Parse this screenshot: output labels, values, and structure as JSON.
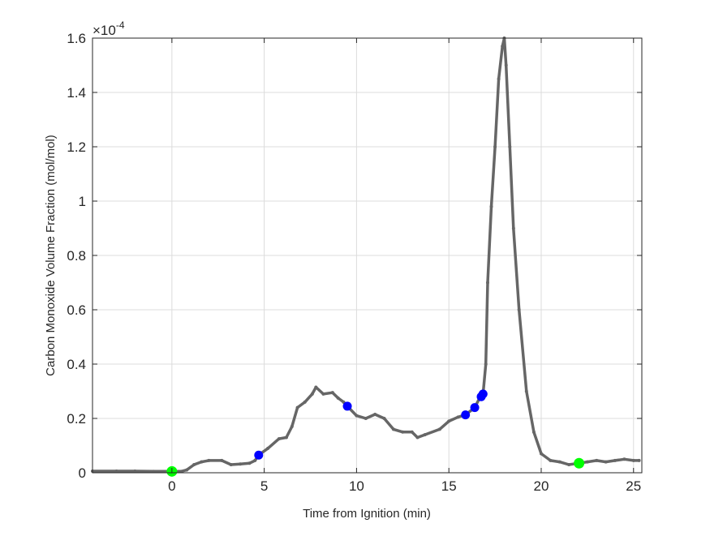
{
  "chart_data": {
    "type": "line",
    "title": "",
    "xlabel": "Time from Ignition (min)",
    "ylabel": "Carbon Monoxide Volume Fraction (mol/mol)",
    "y_exponent_label": "×10",
    "y_exponent_power": "-4",
    "xlim": [
      -4.3,
      25.45
    ],
    "ylim": [
      0,
      1.6
    ],
    "grid": true,
    "x_ticks": [
      0,
      5,
      10,
      15,
      20,
      25
    ],
    "x_tick_labels": [
      "0",
      "5",
      "10",
      "15",
      "20",
      "25"
    ],
    "y_ticks": [
      0,
      0.2,
      0.4,
      0.6,
      0.8,
      1,
      1.2,
      1.4,
      1.6
    ],
    "y_tick_labels": [
      "0",
      "0.2",
      "0.4",
      "0.6",
      "0.8",
      "1",
      "1.2",
      "1.4",
      "1.6"
    ],
    "series": [
      {
        "color": "#666666",
        "x": [
          -4.3,
          -3,
          -2,
          -1,
          0,
          0.5,
          0.8,
          1.2,
          1.6,
          2,
          2.7,
          3.2,
          3.7,
          4.2,
          4.5,
          4.7,
          5.2,
          5.8,
          6.2,
          6.5,
          6.8,
          7.2,
          7.6,
          7.8,
          8.2,
          8.7,
          9,
          9.3,
          9.5,
          10,
          10.5,
          11,
          11.5,
          12,
          12.5,
          13,
          13.3,
          13.7,
          14.5,
          15,
          15.5,
          15.9,
          16.4,
          16.7,
          16.85,
          17.0,
          17.1,
          17.3,
          17.5,
          17.7,
          17.9,
          18.0,
          18.1,
          18.3,
          18.5,
          18.8,
          19.2,
          19.6,
          20.0,
          20.5,
          21,
          21.5,
          22,
          22.5,
          23,
          23.5,
          24,
          24.5,
          25,
          25.3
        ],
        "y": [
          0.006,
          0.006,
          0.006,
          0.005,
          0.005,
          0.005,
          0.01,
          0.03,
          0.04,
          0.045,
          0.045,
          0.03,
          0.032,
          0.035,
          0.045,
          0.065,
          0.09,
          0.125,
          0.13,
          0.17,
          0.24,
          0.26,
          0.29,
          0.315,
          0.29,
          0.295,
          0.275,
          0.26,
          0.245,
          0.21,
          0.2,
          0.215,
          0.2,
          0.16,
          0.15,
          0.15,
          0.13,
          0.14,
          0.16,
          0.19,
          0.205,
          0.213,
          0.24,
          0.28,
          0.29,
          0.4,
          0.7,
          0.98,
          1.2,
          1.45,
          1.57,
          1.6,
          1.5,
          1.2,
          0.9,
          0.6,
          0.3,
          0.15,
          0.07,
          0.045,
          0.04,
          0.03,
          0.035,
          0.04,
          0.045,
          0.04,
          0.045,
          0.05,
          0.045,
          0.045
        ]
      }
    ],
    "highlight_points": [
      {
        "x": 0,
        "y": 0.005,
        "color": "#00ff00"
      },
      {
        "x": 22.05,
        "y": 0.035,
        "color": "#00ff00"
      },
      {
        "x": 4.7,
        "y": 0.065,
        "color": "#0000ff"
      },
      {
        "x": 9.5,
        "y": 0.245,
        "color": "#0000ff"
      },
      {
        "x": 15.9,
        "y": 0.213,
        "color": "#0000ff"
      },
      {
        "x": 16.4,
        "y": 0.24,
        "color": "#0000ff"
      },
      {
        "x": 16.75,
        "y": 0.28,
        "color": "#0000ff"
      },
      {
        "x": 16.85,
        "y": 0.29,
        "color": "#0000ff"
      }
    ]
  }
}
